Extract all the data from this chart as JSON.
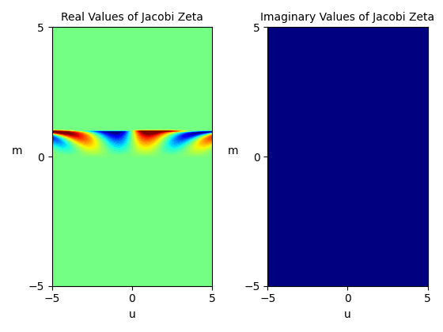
{
  "title1": "Real Values of Jacobi Zeta",
  "title2": "Imaginary Values of Jacobi Zeta",
  "xlabel": "u",
  "ylabel": "m",
  "u_range": [
    -5,
    5
  ],
  "m_range": [
    -5,
    5
  ],
  "n_points": 300,
  "cmap": "jet",
  "figsize": [
    5.6,
    4.2
  ],
  "dpi": 100,
  "clip_percentile": 2
}
